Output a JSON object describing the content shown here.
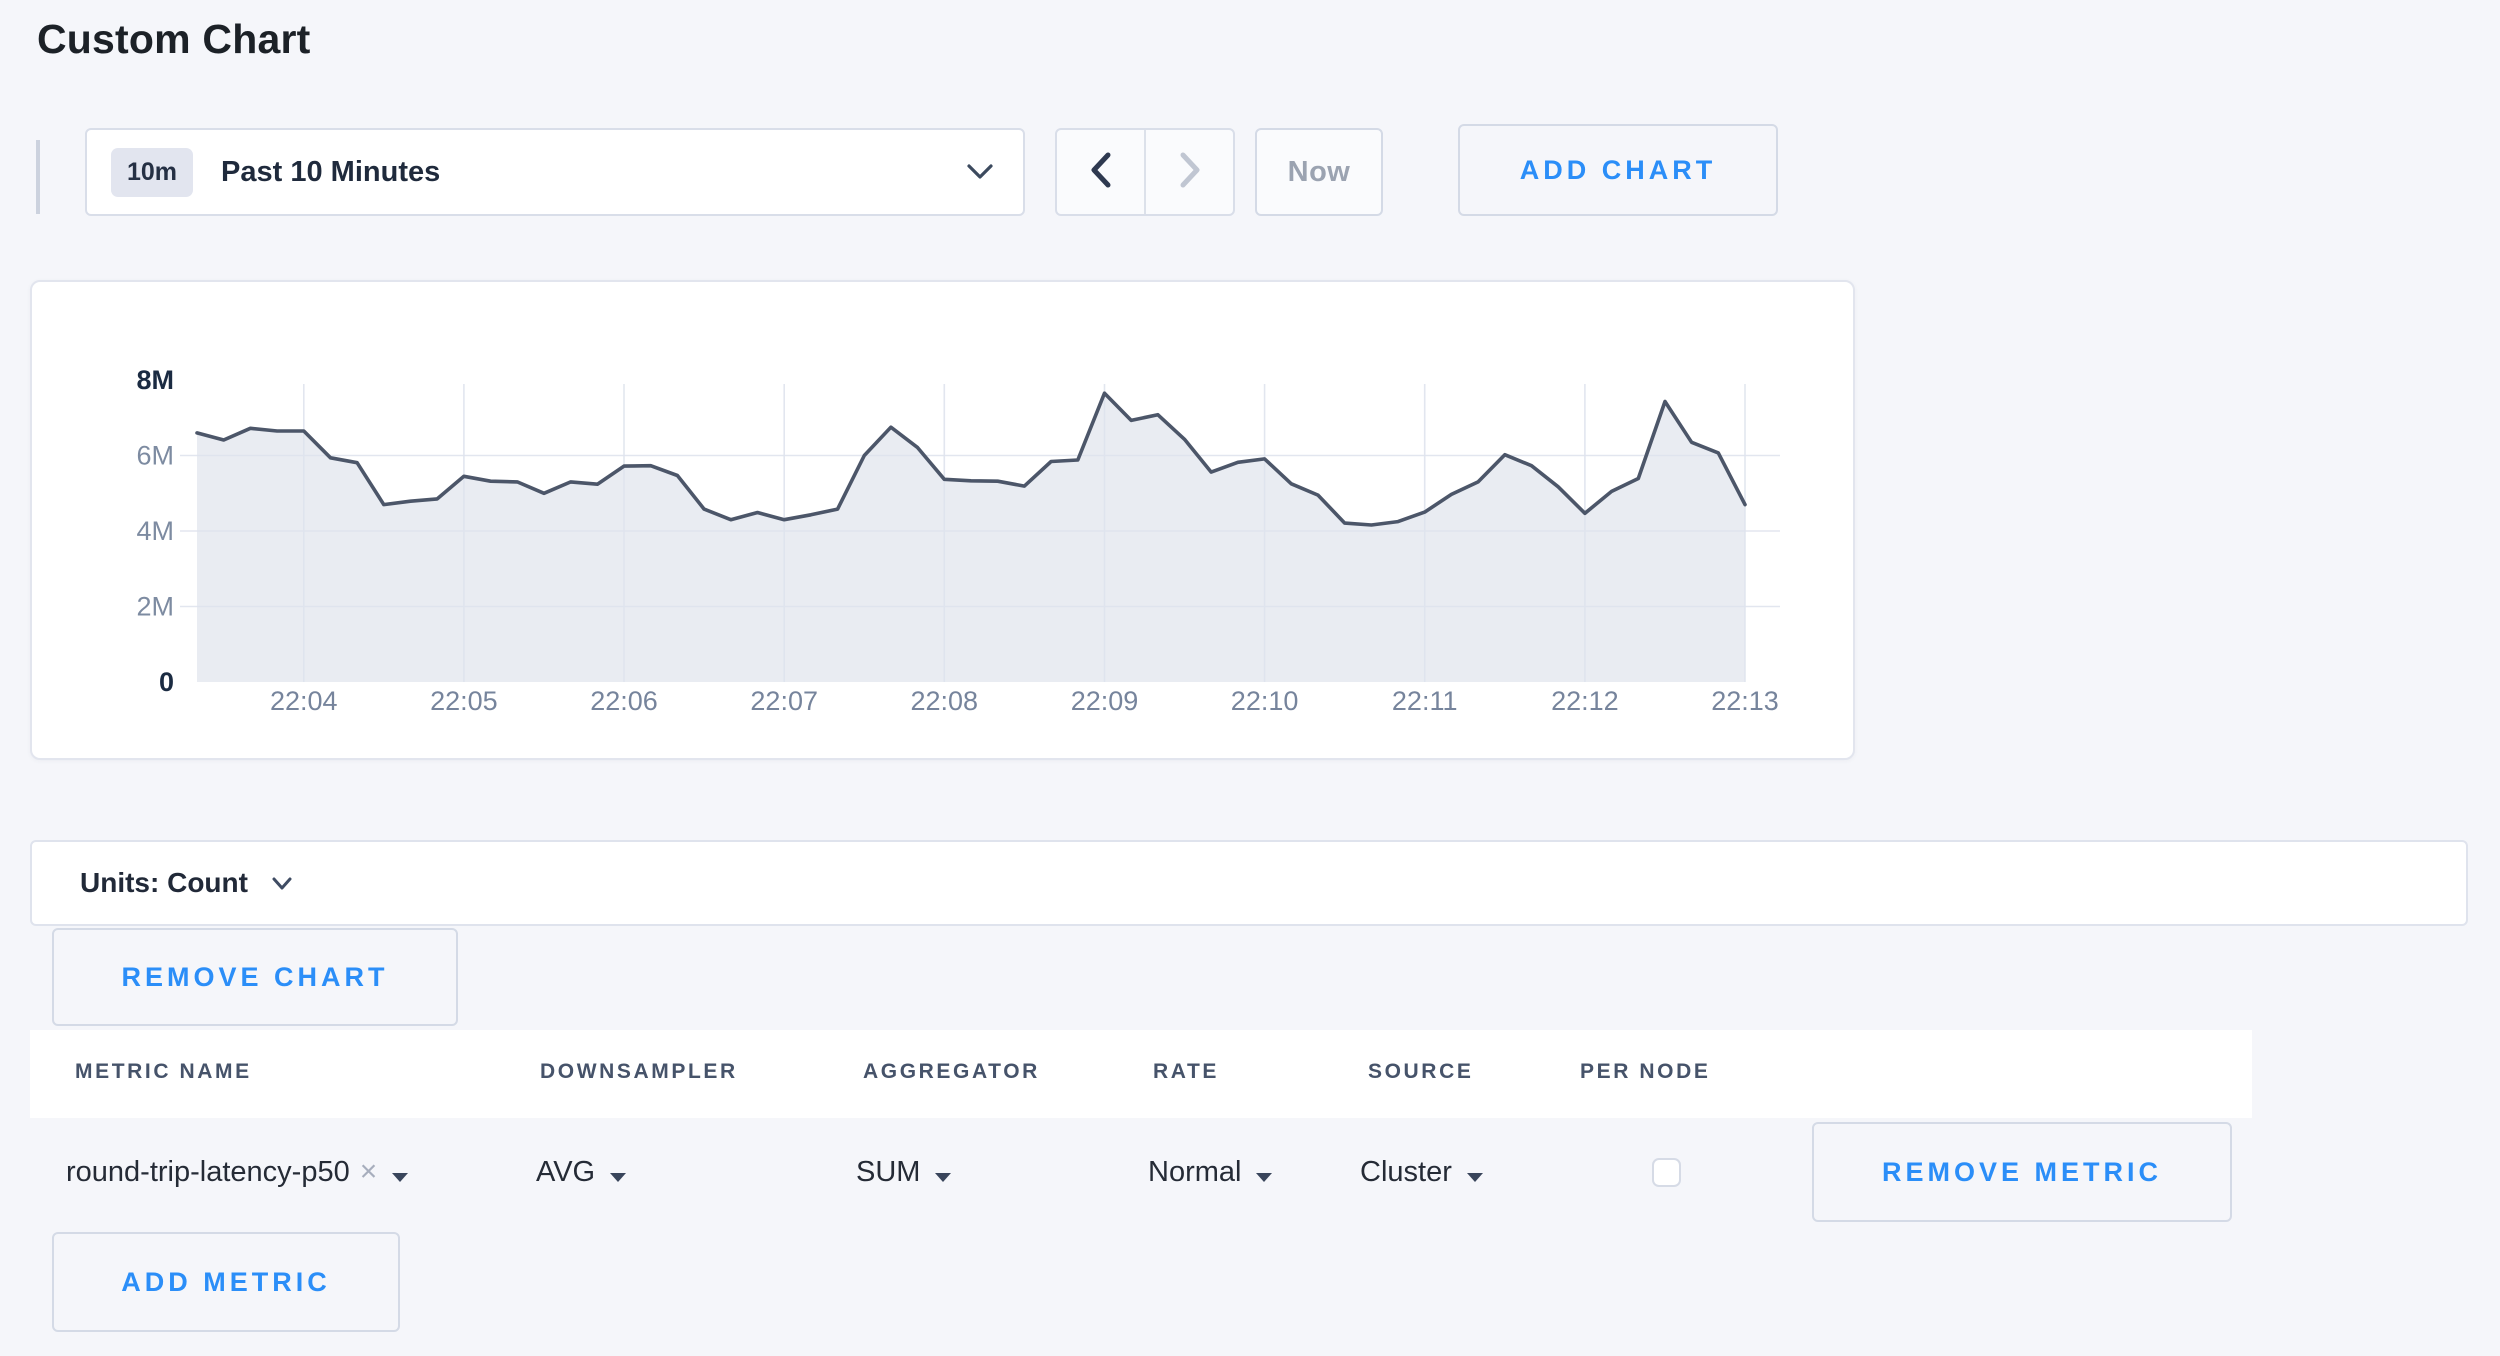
{
  "page": {
    "title": "Custom Chart"
  },
  "colors": {
    "accent_blue": "#2b8ef8",
    "page_bg": "#f5f6fa",
    "chart_line": "#4c5669",
    "chart_fill": "#e9ecf2",
    "grid_line": "#dfe4ee",
    "axis_label_muted": "#7d8ba1",
    "axis_label_strong": "#1b2b42"
  },
  "toolbar": {
    "time_selector": {
      "badge": "10m",
      "label": "Past 10 Minutes"
    },
    "now_button": "Now",
    "add_chart_button": "ADD CHART"
  },
  "chart_data": {
    "type": "area",
    "title": "",
    "unit": "Count",
    "x_first_point": "22:03:20",
    "x_interval_seconds": 10,
    "x_tick_labels": [
      "22:04",
      "22:05",
      "22:06",
      "22:07",
      "22:08",
      "22:09",
      "22:10",
      "22:11",
      "22:12",
      "22:13"
    ],
    "y_tick_labels": [
      "0",
      "2M",
      "4M",
      "6M",
      "8M"
    ],
    "ylim_millions": [
      0,
      8
    ],
    "grid": true,
    "legend": "none",
    "series": [
      {
        "name": "round-trip-latency-p50",
        "values_millions": [
          6.6,
          6.41,
          6.72,
          6.65,
          6.65,
          5.94,
          5.81,
          4.7,
          4.79,
          4.85,
          5.45,
          5.32,
          5.3,
          5.0,
          5.3,
          5.24,
          5.72,
          5.73,
          5.47,
          4.58,
          4.3,
          4.49,
          4.3,
          4.43,
          4.58,
          6.0,
          6.75,
          6.21,
          5.37,
          5.33,
          5.32,
          5.19,
          5.84,
          5.88,
          7.65,
          6.93,
          7.08,
          6.43,
          5.56,
          5.82,
          5.91,
          5.25,
          4.95,
          4.21,
          4.16,
          4.25,
          4.5,
          4.97,
          5.3,
          6.02,
          5.73,
          5.17,
          4.47,
          5.05,
          5.39,
          7.43,
          6.35,
          6.07,
          4.7
        ]
      }
    ]
  },
  "units_bar": {
    "label": "Units: Count"
  },
  "chart_actions": {
    "remove_chart_button": "REMOVE CHART"
  },
  "metrics_table": {
    "columns": [
      "METRIC NAME",
      "DOWNSAMPLER",
      "AGGREGATOR",
      "RATE",
      "SOURCE",
      "PER NODE"
    ],
    "rows": [
      {
        "metric_name": "round-trip-latency-p50",
        "downsampler": "AVG",
        "aggregator": "SUM",
        "rate": "Normal",
        "source": "Cluster",
        "per_node_checked": false,
        "remove_button": "REMOVE METRIC"
      }
    ],
    "add_metric_button": "ADD METRIC"
  },
  "icons": {
    "remove_x": "×"
  }
}
